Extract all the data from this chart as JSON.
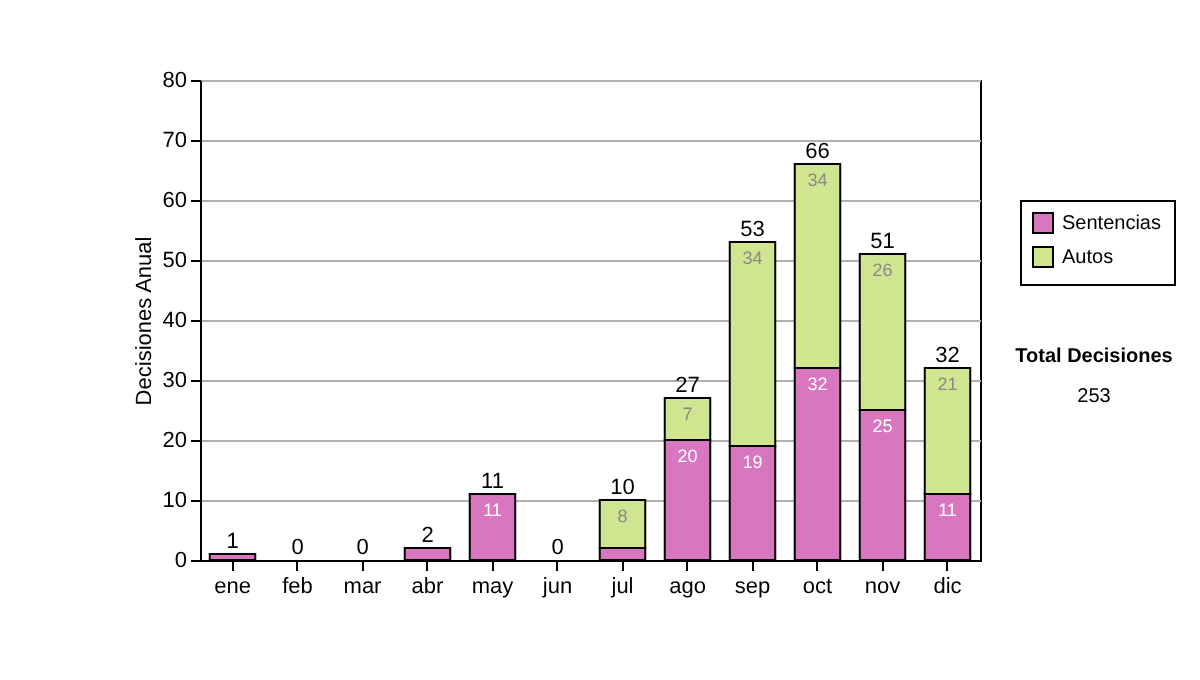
{
  "chart_data": {
    "type": "bar",
    "ylabel": "Decisiones Anual",
    "categories": [
      "ene",
      "feb",
      "mar",
      "abr",
      "may",
      "jun",
      "jul",
      "ago",
      "sep",
      "oct",
      "nov",
      "dic"
    ],
    "series": [
      {
        "name": "Sentencias",
        "color": "#d877c0",
        "values": [
          1,
          0,
          0,
          2,
          11,
          0,
          2,
          20,
          19,
          32,
          25,
          11
        ],
        "value_labels": [
          null,
          null,
          null,
          null,
          "11",
          null,
          null,
          "20",
          "19",
          "32",
          "25",
          "11"
        ]
      },
      {
        "name": "Autos",
        "color": "#cfe590",
        "values": [
          0,
          0,
          0,
          0,
          0,
          0,
          8,
          7,
          34,
          34,
          26,
          21
        ],
        "value_labels": [
          null,
          null,
          null,
          null,
          null,
          null,
          "8",
          "7",
          "34",
          "34",
          "26",
          "21"
        ]
      }
    ],
    "stacked": true,
    "totals": [
      "1",
      "0",
      "0",
      "2",
      "11",
      "0",
      "10",
      "27",
      "53",
      "66",
      "51",
      "32"
    ],
    "ylim": [
      0,
      80
    ],
    "yticks": [
      0,
      10,
      20,
      30,
      40,
      50,
      60,
      70,
      80
    ],
    "grid": "y",
    "legend": "right",
    "annotations": [
      "Total Decisiones",
      "253"
    ]
  }
}
